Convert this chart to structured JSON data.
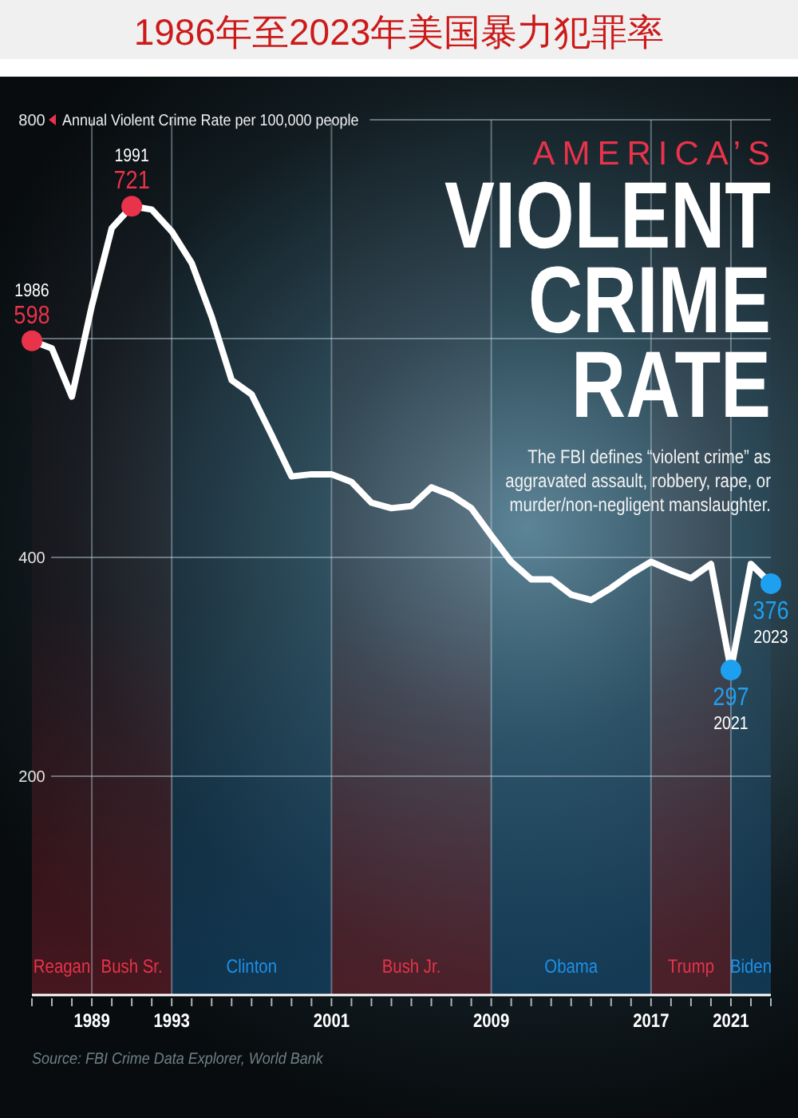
{
  "chart_data": {
    "type": "line",
    "title": "1986年至2023年美国暴力犯罪率",
    "subtitle": "AMERICA’S VIOLENT CRIME RATE",
    "ylabel": "Annual Violent Crime Rate per 100,000 people",
    "x": [
      1986,
      1987,
      1988,
      1989,
      1990,
      1991,
      1992,
      1993,
      1994,
      1995,
      1996,
      1997,
      1998,
      1999,
      2000,
      2001,
      2002,
      2003,
      2004,
      2005,
      2006,
      2007,
      2008,
      2009,
      2010,
      2011,
      2012,
      2013,
      2014,
      2015,
      2016,
      2017,
      2018,
      2019,
      2020,
      2021,
      2022,
      2023
    ],
    "series": [
      {
        "color": "#ffffff",
        "values": [
          598,
          591,
          547,
          630,
          701,
          721,
          718,
          698,
          669,
          620,
          562,
          549,
          512,
          474,
          476,
          476,
          469,
          450,
          445,
          447,
          464,
          457,
          445,
          420,
          396,
          380,
          380,
          366,
          361,
          372,
          385,
          396,
          388,
          381,
          394,
          297,
          394,
          376
        ]
      },
      {
        "type": "scatter",
        "x": [
          1986,
          1991,
          2021,
          2023
        ],
        "values": [
          598,
          721,
          297,
          376
        ],
        "colors": [
          "#e8334a",
          "#e8334a",
          "#1ea0f0",
          "#1ea0f0"
        ],
        "value_labels": [
          "598",
          "721",
          "297",
          "376"
        ]
      }
    ],
    "xlim": [
      1986,
      2023
    ],
    "xticks": [
      {
        "value": 1986,
        "label": null
      },
      {
        "value": 1987,
        "label": null
      },
      {
        "value": 1988,
        "label": null
      },
      1989,
      {
        "value": 1990,
        "label": null
      },
      {
        "value": 1991,
        "label": null
      },
      {
        "value": 1992,
        "label": null
      },
      1993,
      {
        "value": 1994,
        "label": null
      },
      {
        "value": 1995,
        "label": null
      },
      {
        "value": 1996,
        "label": null
      },
      {
        "value": 1997,
        "label": null
      },
      {
        "value": 1998,
        "label": null
      },
      {
        "value": 1999,
        "label": null
      },
      {
        "value": 2000,
        "label": null
      },
      2001,
      {
        "value": 2002,
        "label": null
      },
      {
        "value": 2003,
        "label": null
      },
      {
        "value": 2004,
        "label": null
      },
      {
        "value": 2005,
        "label": null
      },
      {
        "value": 2006,
        "label": null
      },
      {
        "value": 2007,
        "label": null
      },
      {
        "value": 2008,
        "label": null
      },
      2009,
      {
        "value": 2010,
        "label": null
      },
      {
        "value": 2011,
        "label": null
      },
      {
        "value": 2012,
        "label": null
      },
      {
        "value": 2013,
        "label": null
      },
      {
        "value": 2014,
        "label": null
      },
      {
        "value": 2015,
        "label": null
      },
      {
        "value": 2016,
        "label": null
      },
      2017,
      {
        "value": 2018,
        "label": null
      },
      {
        "value": 2019,
        "label": null
      },
      {
        "value": 2020,
        "label": null
      },
      2021,
      {
        "value": 2022,
        "label": null
      },
      {
        "value": 2023,
        "label": null
      }
    ],
    "ylim": [
      0,
      800
    ],
    "yticks": [
      200,
      400,
      {
        "value": 600,
        "label": null
      },
      800
    ],
    "grid": true,
    "bands": [
      {
        "axis": "x",
        "from": 1986,
        "to": 1989,
        "label": "Reagan",
        "color": "#e8334a"
      },
      {
        "axis": "x",
        "from": 1989,
        "to": 1993,
        "label": "Bush Sr.",
        "color": "#e8334a"
      },
      {
        "axis": "x",
        "from": 1993,
        "to": 2001,
        "label": "Clinton",
        "color": "#1e90e6"
      },
      {
        "axis": "x",
        "from": 2001,
        "to": 2009,
        "label": "Bush Jr.",
        "color": "#e8334a"
      },
      {
        "axis": "x",
        "from": 2009,
        "to": 2017,
        "label": "Obama",
        "color": "#1e90e6"
      },
      {
        "axis": "x",
        "from": 2017,
        "to": 2021,
        "label": "Trump",
        "color": "#e8334a"
      },
      {
        "axis": "x",
        "from": 2021,
        "to": 2023,
        "label": "Biden",
        "color": "#1e90e6"
      }
    ],
    "annotations": [
      "The FBI defines “violent crime” as aggravated assault, robbery, rape, or murder/non-negligent manslaughter.",
      "Source: FBI Crime Data Explorer, World Bank",
      {
        "text": "1986",
        "x": 1986,
        "y": 598
      },
      {
        "text": "1991",
        "x": 1991,
        "y": 721
      },
      {
        "text": "2021",
        "x": 2021,
        "y": 297
      },
      {
        "text": "2023",
        "x": 2023,
        "y": 376
      }
    ]
  }
}
